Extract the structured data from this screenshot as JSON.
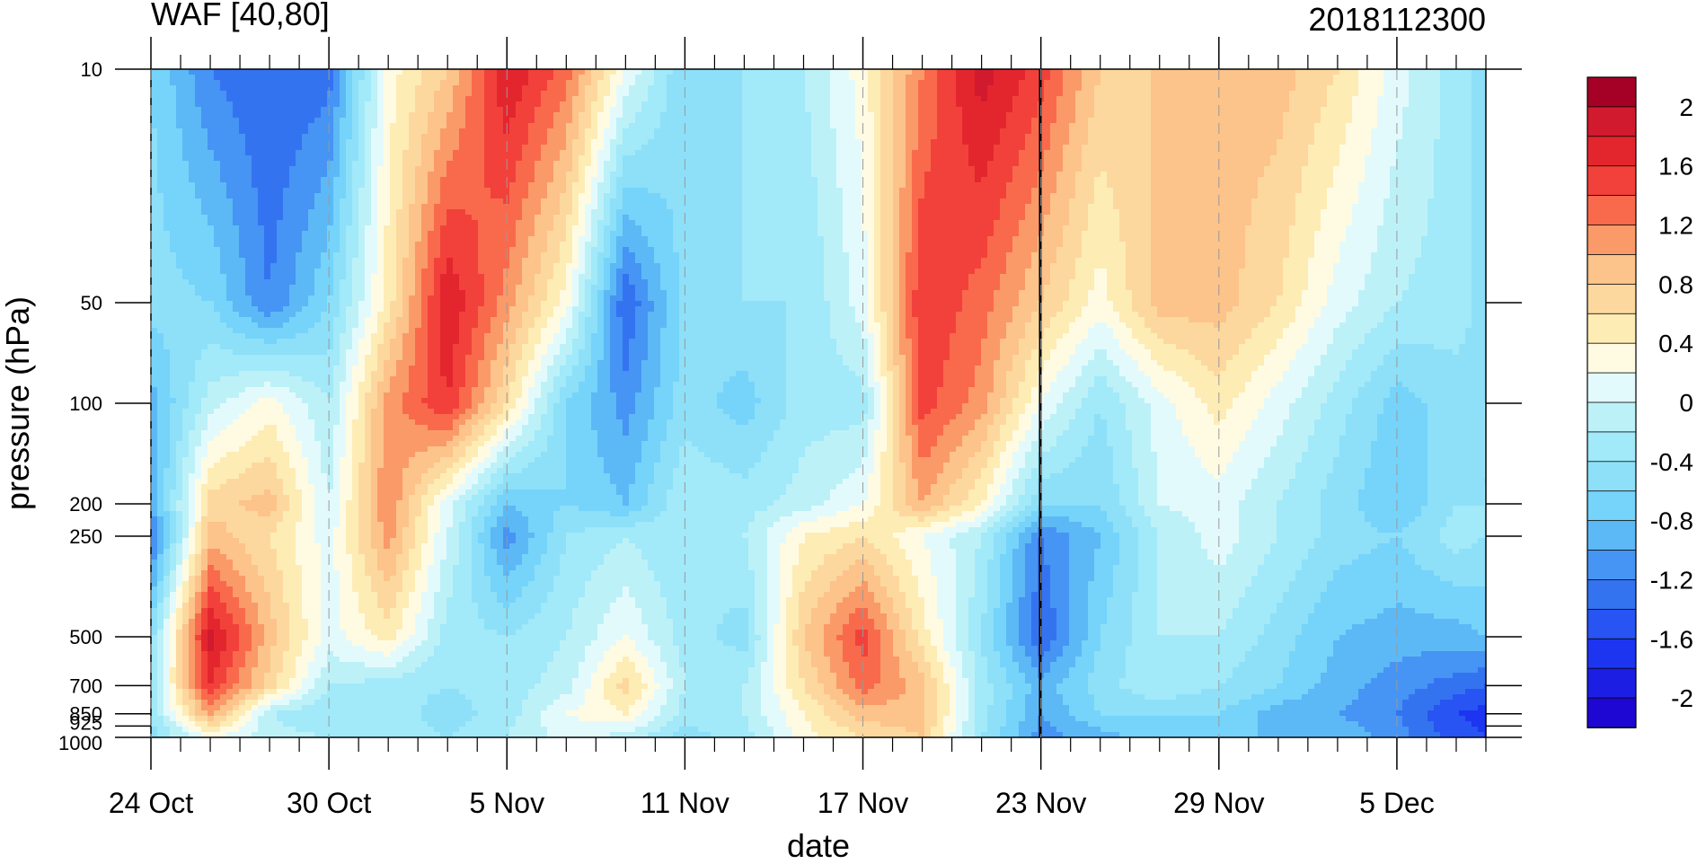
{
  "chart_data": {
    "type": "heatmap",
    "title_left": "WAF [40,80]",
    "title_right": "2018112300",
    "xlabel": "date",
    "ylabel": "pressure (hPa)",
    "x_ticks": [
      "24 Oct",
      "30 Oct",
      "5 Nov",
      "11 Nov",
      "17 Nov",
      "23 Nov",
      "29 Nov",
      "5 Dec"
    ],
    "x_range_days": [
      0,
      45
    ],
    "y_ticks": [
      "10",
      "50",
      "100",
      "200",
      "250",
      "500",
      "700",
      "850",
      "925",
      "1000"
    ],
    "y_scale": "log",
    "y_range": [
      1000,
      10
    ],
    "current_date_marker": "23 Nov",
    "colorbar": {
      "labels": [
        "2",
        "1.6",
        "1.2",
        "0.8",
        "0.4",
        "0",
        "-0.4",
        "-0.8",
        "-1.2",
        "-1.6",
        "-2"
      ],
      "levels": [
        2.2,
        2.0,
        1.8,
        1.6,
        1.4,
        1.2,
        1.0,
        0.8,
        0.6,
        0.4,
        0.2,
        0.0,
        -0.2,
        -0.4,
        -0.6,
        -0.8,
        -1.0,
        -1.2,
        -1.4,
        -1.6,
        -1.8,
        -2.0,
        -2.2
      ],
      "colors": [
        "#a50026",
        "#d21a2e",
        "#e3262e",
        "#f2413a",
        "#f96a4c",
        "#fa9a68",
        "#fcc38b",
        "#fdd89e",
        "#feecb5",
        "#fffbe3",
        "#e3fafc",
        "#bdf1f8",
        "#a2e9f9",
        "#8de0f8",
        "#76d3fa",
        "#5cb9f5",
        "#4694f4",
        "#3473f0",
        "#2754f2",
        "#1d35f0",
        "#1c1ee3",
        "#1f07d3"
      ]
    },
    "x": [
      0,
      2,
      4,
      6,
      8,
      10,
      12,
      14,
      16,
      18,
      20,
      22,
      24,
      26,
      28,
      30,
      32,
      34,
      36,
      38,
      40,
      42,
      44,
      45
    ],
    "y": [
      1000,
      850,
      700,
      500,
      250,
      200,
      100,
      50,
      10
    ],
    "z": [
      [
        -0.5,
        0.2,
        -0.1,
        -0.2,
        -0.3,
        -0.4,
        -0.2,
        0.1,
        -0.1,
        -0.5,
        -0.3,
        0.3,
        0.6,
        0.8,
        -0.4,
        -1.1,
        -0.9,
        -0.7,
        -0.6,
        -0.9,
        -0.8,
        -1.1,
        -1.5,
        -1.6
      ],
      [
        -0.4,
        1.1,
        -0.2,
        -0.4,
        -0.3,
        -0.5,
        -0.3,
        0.2,
        0.4,
        -0.3,
        -0.2,
        0.4,
        0.9,
        0.9,
        -0.3,
        -1.0,
        -0.6,
        -0.6,
        -0.6,
        -0.9,
        -1.0,
        -1.2,
        -1.6,
        -1.7
      ],
      [
        -0.3,
        1.6,
        0.7,
        -0.2,
        -0.3,
        -0.4,
        -0.3,
        -0.1,
        0.7,
        -0.2,
        -0.2,
        0.6,
        1.3,
        0.9,
        -0.3,
        -0.9,
        -0.5,
        -0.2,
        -0.4,
        -0.6,
        -0.9,
        -1.1,
        -1.3,
        -1.4
      ],
      [
        -0.5,
        1.9,
        0.9,
        0.1,
        0.5,
        -0.3,
        -0.4,
        -0.2,
        0.2,
        -0.3,
        -0.5,
        0.8,
        1.5,
        0.5,
        -0.4,
        -1.4,
        -0.6,
        -0.2,
        -0.2,
        -0.5,
        -0.8,
        -0.9,
        -0.9,
        -0.8
      ],
      [
        -1.3,
        0.9,
        0.6,
        0.1,
        1.1,
        0.0,
        -1.1,
        -0.4,
        -0.2,
        -0.4,
        -0.2,
        0.4,
        0.6,
        0.2,
        -0.2,
        -1.2,
        -0.8,
        -0.2,
        0.1,
        -0.2,
        -0.5,
        -0.6,
        -0.3,
        -0.4
      ],
      [
        -1.0,
        0.7,
        0.9,
        0.0,
        1.2,
        0.1,
        -0.8,
        -0.6,
        -0.8,
        -0.2,
        -0.3,
        -0.1,
        0.2,
        1.0,
        0.4,
        -0.6,
        -0.6,
        0.0,
        0.1,
        -0.2,
        -0.5,
        -0.8,
        -0.4,
        -0.4
      ],
      [
        -0.9,
        -0.1,
        0.3,
        -0.2,
        1.1,
        1.6,
        0.6,
        -0.6,
        -1.1,
        -0.5,
        -0.7,
        -0.3,
        -0.3,
        1.5,
        1.1,
        0.2,
        -0.4,
        0.1,
        0.5,
        0.1,
        -0.3,
        -0.7,
        -0.5,
        -0.4
      ],
      [
        -0.5,
        -0.6,
        -1.2,
        -0.6,
        0.5,
        1.8,
        1.1,
        0.3,
        -1.4,
        -0.5,
        -0.4,
        -0.4,
        0.1,
        1.6,
        1.3,
        0.8,
        0.3,
        0.9,
        0.9,
        0.6,
        0.1,
        -0.2,
        -0.3,
        -0.5
      ],
      [
        -0.6,
        -1.2,
        -1.4,
        -1.3,
        0.3,
        0.8,
        1.8,
        1.3,
        0.2,
        -0.6,
        -0.4,
        -0.2,
        0.3,
        1.2,
        1.9,
        1.5,
        0.8,
        0.8,
        0.9,
        0.9,
        0.6,
        0.1,
        -0.3,
        -0.5
      ]
    ]
  }
}
